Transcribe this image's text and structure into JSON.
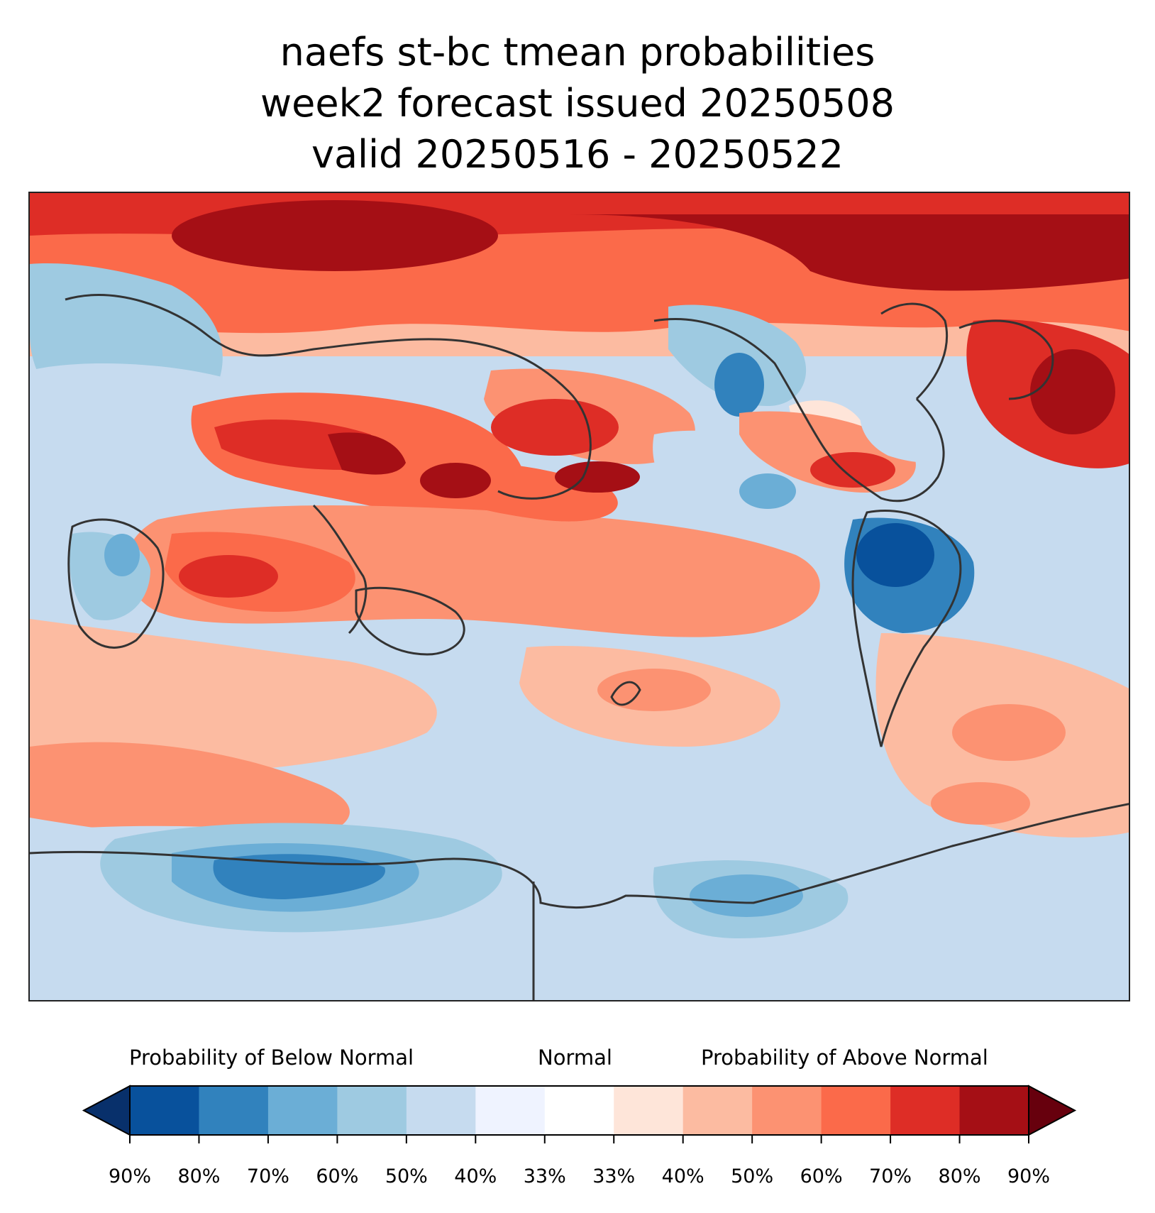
{
  "title": {
    "line1": "naefs st-bc tmean probabilities",
    "line2": "week2 forecast issued 20250508",
    "line3": "valid 20250516 - 20250522"
  },
  "map": {
    "projection": "plate carree, centered on 180°",
    "field": "probability of above / below normal mean temperature"
  },
  "legend": {
    "below_label": "Probability of Below Normal",
    "normal_label": "Normal",
    "above_label": "Probability of Above Normal",
    "ticks": [
      "90%",
      "80%",
      "70%",
      "60%",
      "50%",
      "40%",
      "33%",
      "33%",
      "40%",
      "50%",
      "60%",
      "70%",
      "80%",
      "90%"
    ],
    "colors": [
      "#08519c",
      "#3182bd",
      "#6baed6",
      "#9ecae1",
      "#c6dbef",
      "#eff3ff",
      "#ffffff",
      "#fee5d9",
      "#fcbba1",
      "#fc9272",
      "#fb6a4a",
      "#de2d26",
      "#a50f15"
    ],
    "under_color": "#08306b",
    "over_color": "#67000d"
  }
}
